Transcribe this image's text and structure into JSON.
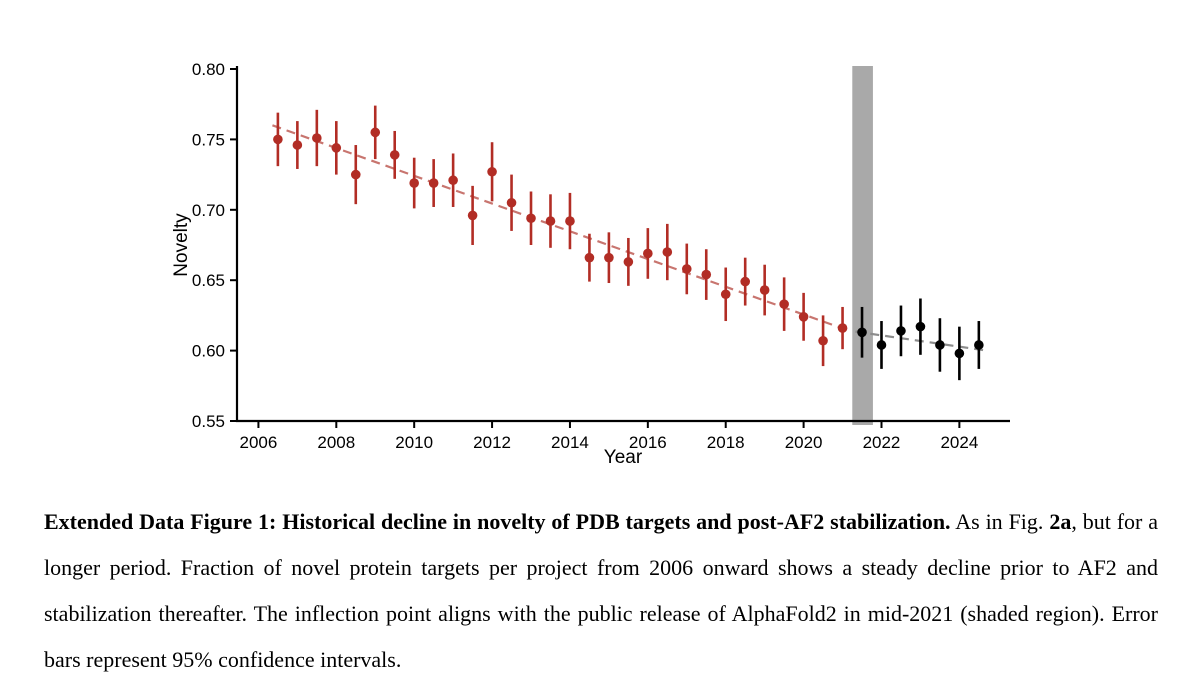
{
  "figure": {
    "background_color": "#ffffff",
    "axis_color": "#000000"
  },
  "chart_data": {
    "type": "scatter",
    "title": "",
    "xlabel": "Year",
    "ylabel": "Novelty",
    "xlim": [
      2005.45,
      2025.3
    ],
    "ylim": [
      0.55,
      0.8
    ],
    "grid": false,
    "legend": "none",
    "x_ticks": [
      {
        "v": 2006,
        "label": "2006"
      },
      {
        "v": 2008,
        "label": "2008"
      },
      {
        "v": 2010,
        "label": "2010"
      },
      {
        "v": 2012,
        "label": "2012"
      },
      {
        "v": 2014,
        "label": "2014"
      },
      {
        "v": 2016,
        "label": "2016"
      },
      {
        "v": 2018,
        "label": "2018"
      },
      {
        "v": 2020,
        "label": "2020"
      },
      {
        "v": 2022,
        "label": "2022"
      },
      {
        "v": 2024,
        "label": "2024"
      }
    ],
    "y_ticks": [
      {
        "v": 0.55,
        "label": "0.55"
      },
      {
        "v": 0.6,
        "label": "0.60"
      },
      {
        "v": 0.65,
        "label": "0.65"
      },
      {
        "v": 0.7,
        "label": "0.70"
      },
      {
        "v": 0.75,
        "label": "0.75"
      },
      {
        "v": 0.8,
        "label": "0.80"
      }
    ],
    "shaded_region": {
      "name": "alphafold2-release-mid-2021",
      "x_start": 2021.25,
      "x_end": 2021.78,
      "color": "#a9a9a9"
    },
    "series": [
      {
        "name": "pre-AF2 novelty (biannual)",
        "color": "#b22d25",
        "marker": "circle",
        "error_bars": "95% CI",
        "x": [
          2006.5,
          2007.0,
          2007.5,
          2008.0,
          2008.5,
          2009.0,
          2009.5,
          2010.0,
          2010.5,
          2011.0,
          2011.5,
          2012.0,
          2012.5,
          2013.0,
          2013.5,
          2014.0,
          2014.5,
          2015.0,
          2015.5,
          2016.0,
          2016.5,
          2017.0,
          2017.5,
          2018.0,
          2018.5,
          2019.0,
          2019.5,
          2020.0,
          2020.5,
          2021.0
        ],
        "y": [
          0.75,
          0.746,
          0.751,
          0.744,
          0.725,
          0.755,
          0.739,
          0.719,
          0.719,
          0.721,
          0.696,
          0.727,
          0.705,
          0.694,
          0.692,
          0.692,
          0.666,
          0.666,
          0.663,
          0.669,
          0.67,
          0.658,
          0.654,
          0.64,
          0.649,
          0.643,
          0.633,
          0.624,
          0.607,
          0.616
        ],
        "err": [
          0.019,
          0.017,
          0.02,
          0.019,
          0.021,
          0.019,
          0.017,
          0.018,
          0.017,
          0.019,
          0.021,
          0.021,
          0.02,
          0.019,
          0.019,
          0.02,
          0.017,
          0.018,
          0.017,
          0.018,
          0.02,
          0.018,
          0.018,
          0.019,
          0.017,
          0.018,
          0.019,
          0.017,
          0.018,
          0.015
        ]
      },
      {
        "name": "post-AF2 novelty (biannual)",
        "color": "#000000",
        "marker": "circle",
        "error_bars": "95% CI",
        "x": [
          2021.5,
          2022.0,
          2022.5,
          2023.0,
          2023.5,
          2024.0,
          2024.5
        ],
        "y": [
          0.613,
          0.604,
          0.614,
          0.617,
          0.604,
          0.598,
          0.604
        ],
        "err": [
          0.018,
          0.017,
          0.018,
          0.02,
          0.019,
          0.019,
          0.017
        ]
      }
    ],
    "trend_lines": [
      {
        "name": "pre-AF2 trend",
        "color": "#c8756f",
        "dashed": true,
        "x": [
          2006.36,
          2021.23
        ],
        "y": [
          0.76,
          0.6135
        ]
      },
      {
        "name": "post-AF2 trend",
        "color": "#8c8c8c",
        "dashed": true,
        "x": [
          2021.33,
          2024.7
        ],
        "y": [
          0.6135,
          0.6
        ]
      }
    ]
  },
  "caption": {
    "segments": [
      {
        "text": "Extended Data Figure 1: Historical decline in novelty of PDB targets and post-AF2 stabilization.",
        "bold": true
      },
      {
        "text": " As in Fig. ",
        "bold": false
      },
      {
        "text": "2a",
        "bold": true
      },
      {
        "text": ", but for a longer period. Fraction of novel protein targets per project from 2006 onward shows a steady decline prior to AF2 and stabilization thereafter. The inflection point aligns with the public release of AlphaFold2 in mid-2021 (shaded region). Error bars represent 95% confidence intervals.",
        "bold": false
      }
    ]
  }
}
